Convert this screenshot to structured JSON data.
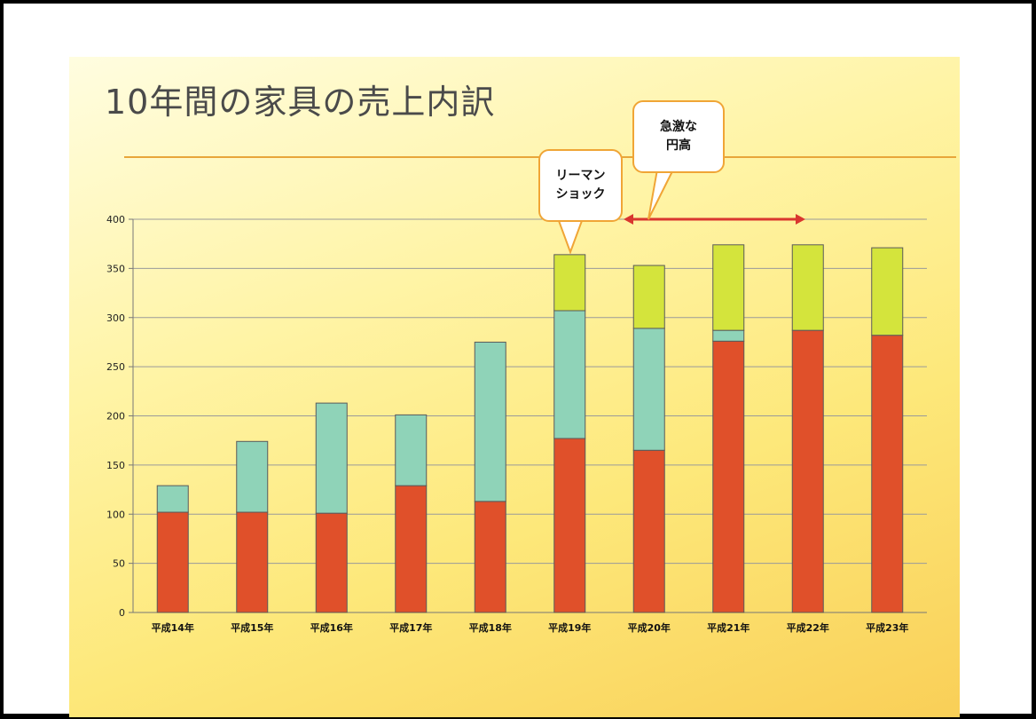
{
  "title": "10年間の家具の売上内訳",
  "callouts": [
    {
      "lines": [
        "リーマン",
        "ショック"
      ]
    },
    {
      "lines": [
        "急激な",
        "円高"
      ]
    }
  ],
  "colors": {
    "series1": "#e0502a",
    "series2": "#8fd3b8",
    "series3": "#d4e43c",
    "accent": "#f0a536",
    "arrow": "#d9362f"
  },
  "chart_data": {
    "type": "bar",
    "stacked": true,
    "categories": [
      "平成14年",
      "平成15年",
      "平成16年",
      "平成17年",
      "平成18年",
      "平成19年",
      "平成20年",
      "平成21年",
      "平成22年",
      "平成23年"
    ],
    "series": [
      {
        "values": [
          102,
          102,
          101,
          129,
          113,
          177,
          165,
          276,
          287,
          282
        ]
      },
      {
        "values": [
          27,
          72,
          112,
          72,
          162,
          130,
          124,
          11,
          0,
          0
        ]
      },
      {
        "values": [
          0,
          0,
          0,
          0,
          0,
          57,
          64,
          87,
          87,
          89
        ]
      }
    ],
    "yticks": [
      0,
      50,
      100,
      150,
      200,
      250,
      300,
      350,
      400
    ],
    "ylim": [
      0,
      400
    ],
    "grid": true,
    "annotations": [
      {
        "text": "リーマン ショック",
        "category": "平成19年"
      },
      {
        "text": "急激な 円高",
        "range": [
          "平成20年",
          "平成22年"
        ]
      }
    ]
  }
}
